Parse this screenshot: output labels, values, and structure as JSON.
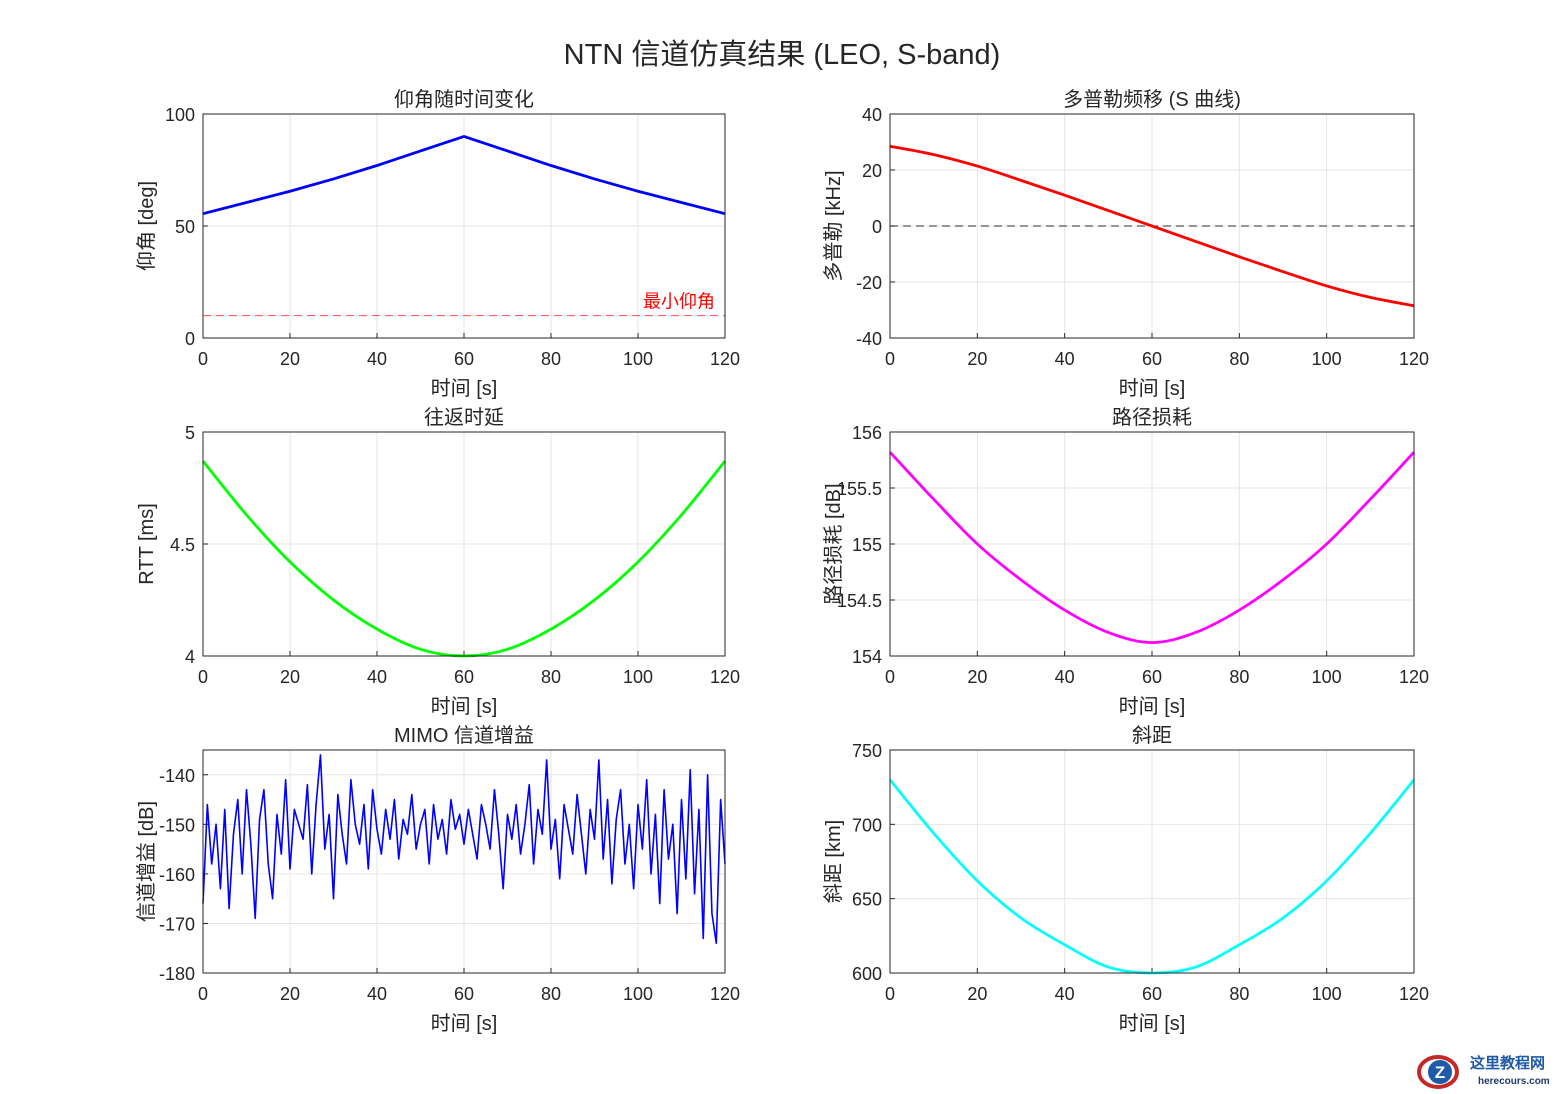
{
  "figure_title": "NTN 信道仿真结果 (LEO, S-band)",
  "watermark": {
    "text": "这里教程网",
    "subtext": "herecours.com"
  },
  "chart_data": [
    {
      "type": "line",
      "title": "仰角随时间变化",
      "xlabel": "时间 [s]",
      "ylabel": "仰角 [deg]",
      "xlim": [
        0,
        120
      ],
      "ylim": [
        0,
        100
      ],
      "xticks": [
        0,
        20,
        40,
        60,
        80,
        100,
        120
      ],
      "yticks": [
        0,
        50,
        100
      ],
      "grid": true,
      "series": [
        {
          "color": "#0000ff",
          "x": [
            0,
            10,
            20,
            30,
            40,
            50,
            60,
            70,
            80,
            90,
            100,
            110,
            120
          ],
          "y": [
            55.5,
            60.5,
            65.5,
            71,
            77,
            83.5,
            90,
            83.5,
            77,
            71,
            65.5,
            60.5,
            55.5
          ]
        }
      ],
      "reference_line": {
        "y": 10,
        "color": "#ff0000",
        "style": "dashed",
        "label": "最小仰角"
      }
    },
    {
      "type": "line",
      "title": "多普勒频移 (S 曲线)",
      "xlabel": "时间 [s]",
      "ylabel": "多普勒 [kHz]",
      "xlim": [
        0,
        120
      ],
      "ylim": [
        -40,
        40
      ],
      "xticks": [
        0,
        20,
        40,
        60,
        80,
        100,
        120
      ],
      "yticks": [
        -40,
        -20,
        0,
        20,
        40
      ],
      "grid": true,
      "series": [
        {
          "color": "#ff0000",
          "x": [
            0,
            10,
            20,
            30,
            40,
            50,
            60,
            70,
            80,
            90,
            100,
            110,
            120
          ],
          "y": [
            28.5,
            25.5,
            21.4,
            16.3,
            11,
            5.5,
            0,
            -5.5,
            -11,
            -16.3,
            -21.4,
            -25.5,
            -28.5
          ]
        }
      ],
      "reference_line": {
        "y": 0,
        "color": "#000000",
        "style": "dashed"
      }
    },
    {
      "type": "line",
      "title": "往返时延",
      "xlabel": "时间 [s]",
      "ylabel": "RTT [ms]",
      "xlim": [
        0,
        120
      ],
      "ylim": [
        4,
        5
      ],
      "xticks": [
        0,
        20,
        40,
        60,
        80,
        100,
        120
      ],
      "yticks": [
        4,
        4.5,
        5
      ],
      "grid": true,
      "series": [
        {
          "color": "#00ff00",
          "x": [
            0,
            10,
            20,
            30,
            40,
            50,
            60,
            70,
            80,
            90,
            100,
            110,
            120
          ],
          "y": [
            4.87,
            4.63,
            4.42,
            4.25,
            4.12,
            4.03,
            4.0,
            4.03,
            4.12,
            4.25,
            4.42,
            4.63,
            4.87
          ]
        }
      ]
    },
    {
      "type": "line",
      "title": "路径损耗",
      "xlabel": "时间 [s]",
      "ylabel": "路径损耗 [dB]",
      "xlim": [
        0,
        120
      ],
      "ylim": [
        154,
        156
      ],
      "xticks": [
        0,
        20,
        40,
        60,
        80,
        100,
        120
      ],
      "yticks": [
        154,
        154.5,
        155,
        155.5,
        156
      ],
      "grid": true,
      "series": [
        {
          "color": "#ff00ff",
          "x": [
            0,
            10,
            20,
            30,
            40,
            50,
            60,
            70,
            80,
            90,
            100,
            110,
            120
          ],
          "y": [
            155.82,
            155.4,
            155.0,
            154.68,
            154.41,
            154.21,
            154.12,
            154.21,
            154.41,
            154.68,
            155.0,
            155.4,
            155.82
          ]
        }
      ]
    },
    {
      "type": "line",
      "title": "MIMO 信道增益",
      "xlabel": "时间 [s]",
      "ylabel": "信道增益 [dB]",
      "xlim": [
        0,
        120
      ],
      "ylim": [
        -180,
        -135
      ],
      "xticks": [
        0,
        20,
        40,
        60,
        80,
        100,
        120
      ],
      "yticks": [
        -180,
        -170,
        -160,
        -150,
        -140
      ],
      "grid": true,
      "series": [
        {
          "color": "#0000ff",
          "x_start": 0,
          "x_step": 1,
          "y": [
            -166,
            -146,
            -158,
            -150,
            -163,
            -147,
            -167,
            -152,
            -145,
            -160,
            -143,
            -154,
            -169,
            -149,
            -143,
            -158,
            -165,
            -148,
            -156,
            -141,
            -159,
            -147,
            -150,
            -153,
            -142,
            -160,
            -146,
            -136,
            -155,
            -148,
            -165,
            -144,
            -152,
            -158,
            -141,
            -150,
            -154,
            -146,
            -159,
            -143,
            -151,
            -156,
            -147,
            -153,
            -145,
            -157,
            -149,
            -152,
            -144,
            -155,
            -150,
            -147,
            -158,
            -146,
            -153,
            -149,
            -156,
            -145,
            -151,
            -148,
            -154,
            -147,
            -152,
            -157,
            -146,
            -150,
            -155,
            -143,
            -152,
            -163,
            -148,
            -153,
            -146,
            -156,
            -150,
            -142,
            -158,
            -147,
            -152,
            -137,
            -155,
            -149,
            -161,
            -146,
            -151,
            -156,
            -144,
            -152,
            -160,
            -147,
            -153,
            -137,
            -157,
            -145,
            -162,
            -149,
            -143,
            -158,
            -150,
            -163,
            -146,
            -155,
            -141,
            -160,
            -148,
            -166,
            -143,
            -157,
            -150,
            -168,
            -145,
            -161,
            -139,
            -164,
            -147,
            -173,
            -140,
            -168,
            -174,
            -145,
            -158
          ]
        }
      ]
    },
    {
      "type": "line",
      "title": "斜距",
      "xlabel": "时间 [s]",
      "ylabel": "斜距 [km]",
      "xlim": [
        0,
        120
      ],
      "ylim": [
        600,
        750
      ],
      "xticks": [
        0,
        20,
        40,
        60,
        80,
        100,
        120
      ],
      "yticks": [
        600,
        650,
        700,
        750
      ],
      "grid": true,
      "series": [
        {
          "color": "#00ffff",
          "x": [
            0,
            10,
            20,
            30,
            40,
            50,
            60,
            70,
            80,
            90,
            100,
            110,
            120
          ],
          "y": [
            730,
            694,
            662,
            637,
            619,
            604,
            600,
            604,
            619,
            637,
            662,
            694,
            730
          ]
        }
      ]
    }
  ]
}
